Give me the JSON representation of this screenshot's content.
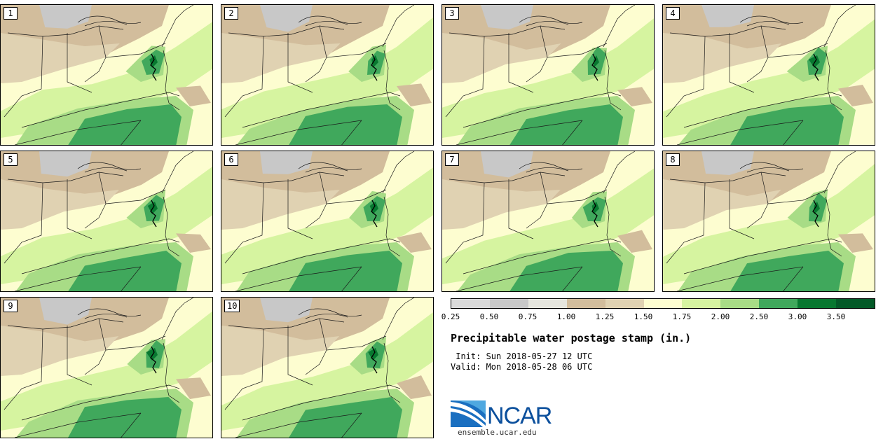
{
  "panels": [
    {
      "label": "1"
    },
    {
      "label": "2"
    },
    {
      "label": "3"
    },
    {
      "label": "4"
    },
    {
      "label": "5"
    },
    {
      "label": "6"
    },
    {
      "label": "7"
    },
    {
      "label": "8"
    },
    {
      "label": "9"
    },
    {
      "label": "10"
    }
  ],
  "legend": {
    "colors": [
      "#dadada",
      "#c8c8c8",
      "#e6e6de",
      "#d2bd9c",
      "#e0d2b2",
      "#fdfdd0",
      "#d6f4a0",
      "#a8dc86",
      "#40a85c",
      "#087830",
      "#045a28",
      "#0a28a8"
    ],
    "ticks": [
      "0.25",
      "0.50",
      "0.75",
      "1.00",
      "1.25",
      "1.50",
      "1.75",
      "2.00",
      "2.50",
      "3.00",
      "3.50"
    ]
  },
  "title": "Precipitable water postage stamp (in.)",
  "init_line": " Init: Sun 2018-05-27 12 UTC",
  "valid_line": "Valid: Mon 2018-05-28 06 UTC",
  "logo": {
    "text": "NCAR",
    "url": "ensemble.ucar.edu"
  }
}
